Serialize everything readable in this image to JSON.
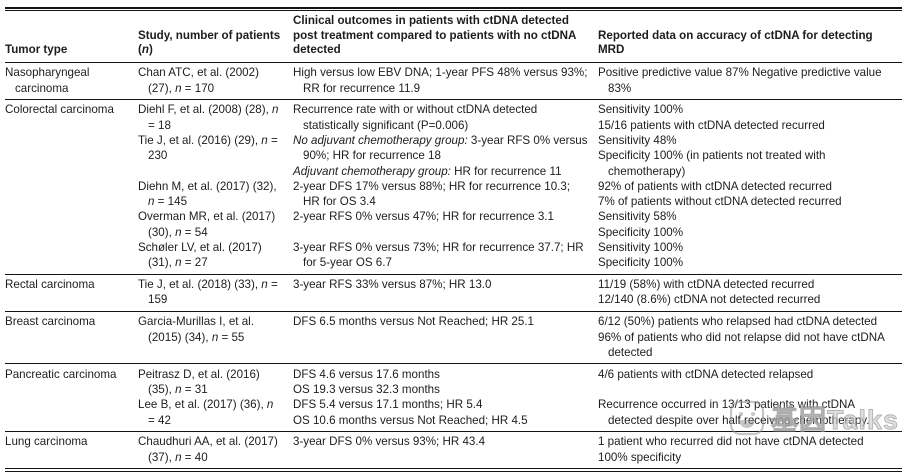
{
  "strings": {
    "comma": ", ",
    "n_label": "n",
    "n_eq": " = "
  },
  "header": {
    "tumor": "Tumor type",
    "study_prefix": "Study, number of patients (",
    "study_suffix": ")",
    "outcomes": "Clinical outcomes in patients with ctDNA detected post treatment compared to patients with no ctDNA detected",
    "accuracy": "Reported data on accuracy of ctDNA for detecting MRD"
  },
  "sections": [
    {
      "tumor_type": "Nasopharyngeal carcinoma",
      "entries": [
        {
          "citation": "Chan ATC, et al. (2002) (27)",
          "n": "170",
          "outcomes": [
            {
              "text": "High versus low EBV DNA; 1-year PFS 48% versus 93%; RR for recurrence 11.9"
            }
          ],
          "accuracy": [
            "Positive predictive value 87% Negative predictive value 83%"
          ]
        }
      ]
    },
    {
      "tumor_type": "Colorectal carcinoma",
      "entries": [
        {
          "citation": "Diehl F, et al. (2008) (28)",
          "n": "18",
          "outcomes": [
            {
              "text": "Recurrence rate with or without ctDNA detected statistically significant (P=0.006)"
            }
          ],
          "accuracy": [
            "Sensitivity 100%",
            "15/16 patients with ctDNA detected recurred"
          ]
        },
        {
          "citation": "Tie J, et al. (2016) (29)",
          "n": "230",
          "outcomes": [
            {
              "italic_lead": "No adjuvant chemotherapy group: ",
              "text": "3-year RFS 0% versus 90%; HR for recurrence 18"
            },
            {
              "italic_lead": "Adjuvant chemotherapy group: ",
              "text": "HR for recurrence 11"
            }
          ],
          "accuracy": [
            "Sensitivity 48%",
            "Specificity 100% (in patients not treated with chemotherapy)"
          ]
        },
        {
          "citation": "Diehn M, et al. (2017) (32)",
          "n": "145",
          "outcomes": [
            {
              "text": "2-year DFS 17% versus 88%; HR for recurrence 10.3; HR for OS 3.4"
            }
          ],
          "accuracy": [
            "92% of patients with ctDNA detected recurred",
            "7% of patients without ctDNA detected recurred"
          ]
        },
        {
          "citation": "Overman MR, et al. (2017) (30)",
          "n": "54",
          "outcomes": [
            {
              "text": "2-year RFS 0% versus 47%; HR for recurrence 3.1"
            }
          ],
          "accuracy": [
            "Sensitivity 58%",
            "Specificity 100%"
          ]
        },
        {
          "citation": "Schøler LV, et al. (2017) (31)",
          "n": "27",
          "outcomes": [
            {
              "text": "3-year RFS 0% versus 73%; HR for recurrence 37.7; HR for 5-year OS 6.7"
            }
          ],
          "accuracy": [
            "Sensitivity 100%",
            "Specificity 100%"
          ]
        }
      ]
    },
    {
      "tumor_type": "Rectal carcinoma",
      "entries": [
        {
          "citation": "Tie J, et al. (2018) (33)",
          "n": "159",
          "outcomes": [
            {
              "text": "3-year RFS 33% versus 87%; HR 13.0"
            }
          ],
          "accuracy": [
            "11/19 (58%) with ctDNA detected recurred",
            "12/140 (8.6%) ctDNA not detected recurred"
          ]
        }
      ]
    },
    {
      "tumor_type": "Breast carcinoma",
      "entries": [
        {
          "citation": "Garcia-Murillas I, et al. (2015) (34)",
          "n": "55",
          "outcomes": [
            {
              "text": "DFS 6.5 months versus Not Reached; HR 25.1"
            }
          ],
          "accuracy": [
            "6/12 (50%) patients who relapsed had ctDNA detected",
            "96% of patients who did not relapse did not have ctDNA detected"
          ]
        }
      ]
    },
    {
      "tumor_type": "Pancreatic carcinoma",
      "entries": [
        {
          "citation": "Peitrasz D, et al. (2016) (35)",
          "n": "31",
          "outcomes": [
            {
              "text": "DFS 4.6 versus 17.6 months"
            },
            {
              "text": "OS 19.3 versus 32.3 months"
            }
          ],
          "accuracy": [
            "4/6 patients with ctDNA detected relapsed"
          ]
        },
        {
          "citation": "Lee B, et al. (2017) (36)",
          "n": "42",
          "outcomes": [
            {
              "text": "DFS 5.4 versus 17.1 months; HR 5.4"
            },
            {
              "text": "OS 10.6 months versus Not Reached; HR 4.5"
            }
          ],
          "accuracy": [
            "Recurrence occurred in 13/13 patients with ctDNA detected despite over half receiving chemotherapy."
          ]
        }
      ]
    },
    {
      "tumor_type": "Lung carcinoma",
      "entries": [
        {
          "citation": "Chaudhuri AA, et al. (2017) (37)",
          "n": "40",
          "outcomes": [
            {
              "text": "3-year DFS 0% versus 93%; HR 43.4"
            }
          ],
          "accuracy": [
            "1 patient who recurred did not have ctDNA detected",
            "100% specificity"
          ]
        }
      ]
    }
  ],
  "watermark": {
    "text": "基因Talks",
    "icon": "smiley-face"
  }
}
